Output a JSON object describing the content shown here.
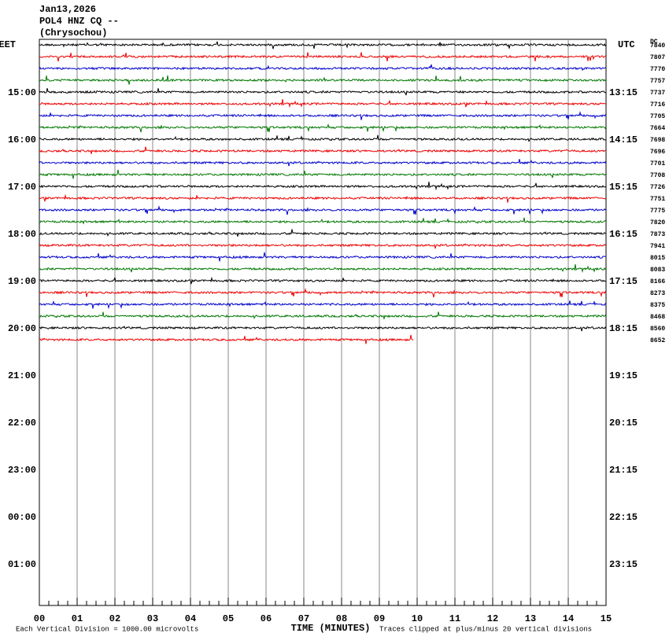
{
  "header": {
    "date": "Jan13,2026",
    "station": "POL4 HNZ CQ --",
    "location": "(Chrysochou)"
  },
  "left_axis": {
    "zone": "EET",
    "labels": [
      "15:00",
      "16:00",
      "17:00",
      "18:00",
      "19:00",
      "20:00",
      "21:00",
      "22:00",
      "23:00",
      "00:00",
      "01:00"
    ]
  },
  "right_axis": {
    "zone": "UTC",
    "labels": [
      "13:15",
      "14:15",
      "15:15",
      "16:15",
      "17:15",
      "18:15",
      "19:15",
      "20:15",
      "21:15",
      "22:15",
      "23:15"
    ]
  },
  "dc": {
    "title": "DC",
    "values": [
      "7840",
      "7807",
      "7770",
      "7757",
      "7737",
      "7716",
      "7705",
      "7664",
      "7698",
      "7696",
      "7701",
      "7708",
      "7726",
      "7751",
      "7775",
      "7820",
      "7873",
      "7941",
      "8015",
      "8083",
      "8166",
      "8273",
      "8375",
      "8468",
      "8560",
      "8652"
    ]
  },
  "x_axis": {
    "ticks": [
      "00",
      "01",
      "02",
      "03",
      "04",
      "05",
      "06",
      "07",
      "08",
      "09",
      "10",
      "11",
      "12",
      "13",
      "14",
      "15"
    ],
    "title": "TIME (MINUTES)"
  },
  "footer": {
    "scale": "Each Vertical Division = 1000.00 microvolts",
    "clip": "Traces clipped at plus/minus 20 vertical divisions"
  }
}
